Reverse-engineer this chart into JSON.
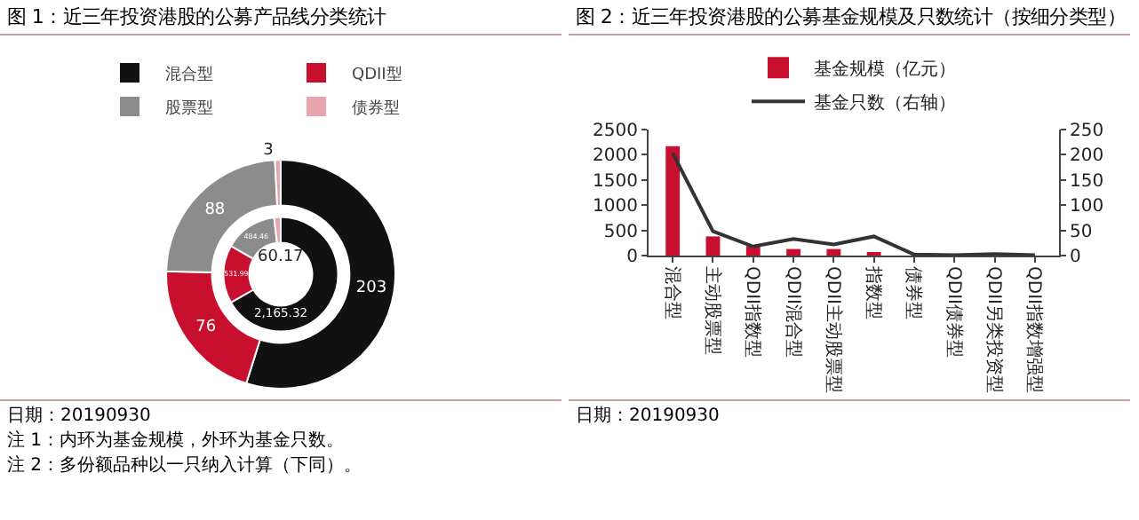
{
  "chart_data": [
    {
      "type": "donut",
      "title": "图 1：近三年投资港股的公募产品线分类统计",
      "categories": [
        "混合型",
        "QDII型",
        "股票型",
        "债券型"
      ],
      "colors": [
        "#111111",
        "#c8102e",
        "#8c8c8c",
        "#e8a4ac"
      ],
      "legend": "top",
      "series": [
        {
          "values": [
            2165.32,
            531.99,
            484.46,
            60.17
          ],
          "value_labels": [
            "2,165.32",
            "531.99",
            "484.46",
            "60.17"
          ]
        },
        {
          "values": [
            203,
            76,
            88,
            3
          ],
          "value_labels": [
            "203",
            "76",
            "88",
            "3"
          ]
        }
      ],
      "annotations": [
        "日期：20190930",
        "注 1：内环为基金规模，外环为基金只数。",
        "注 2：多份额品种以一只纳入计算（下同）。"
      ]
    },
    {
      "type": "bar",
      "title": "图 2：近三年投资港股的公募基金规模及只数统计（按细分类型）",
      "categories": [
        "混合型",
        "主动股票型",
        "QDII指数型",
        "QDII混合型",
        "QDII主动股票型",
        "指数型",
        "债券型",
        "QDII债券型",
        "QDII另类投资型",
        "QDII指数增强型"
      ],
      "legend": "top",
      "series": [
        {
          "name": "基金规模（亿元）",
          "type": "bar",
          "color": "#c8102e",
          "values": [
            2170,
            380,
            190,
            130,
            130,
            70,
            null,
            0,
            0,
            0
          ]
        },
        {
          "name": "基金只数（右轴）",
          "type": "line",
          "axis": "y2",
          "color": "#333333",
          "values": [
            203,
            48,
            18,
            33,
            22,
            38,
            2,
            1,
            3,
            1
          ]
        }
      ],
      "ylim": [
        0,
        2500
      ],
      "yticks": [
        0,
        500,
        1000,
        1500,
        2000,
        2500
      ],
      "y2lim": [
        0,
        250
      ],
      "y2ticks": [
        0,
        50,
        100,
        150,
        200,
        250
      ],
      "annotations": [
        "日期：20190930"
      ]
    }
  ]
}
